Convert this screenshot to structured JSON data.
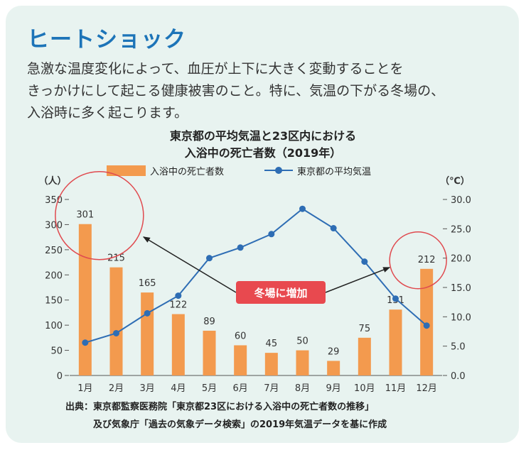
{
  "header": {
    "title": "ヒートショック"
  },
  "description": {
    "lines": [
      "急激な温度変化によって、血圧が上下に大きく変動することを",
      "きっかけにして起こる健康被害のこと。特に、気温の下がる冬場の、",
      "入浴時に多く起こります。"
    ]
  },
  "chart_data": {
    "type": "bar",
    "title_lines": [
      "東京都の平均気温と23区内における",
      "入浴中の死亡者数（2019年）"
    ],
    "categories": [
      "1月",
      "2月",
      "3月",
      "4月",
      "5月",
      "6月",
      "7月",
      "8月",
      "9月",
      "10月",
      "11月",
      "12月"
    ],
    "series": [
      {
        "name": "入浴中の死亡者数",
        "type": "bar",
        "axis": "left",
        "color": "#f39a4e",
        "values": [
          301,
          215,
          165,
          122,
          89,
          60,
          45,
          50,
          29,
          75,
          131,
          212
        ]
      },
      {
        "name": "東京都の平均気温",
        "type": "line",
        "axis": "right",
        "color": "#2e6db4",
        "values": [
          5.6,
          7.2,
          10.6,
          13.6,
          20.0,
          21.8,
          24.1,
          28.4,
          25.1,
          19.4,
          13.1,
          8.5
        ]
      }
    ],
    "left_axis": {
      "unit": "（人）",
      "ylim": [
        0,
        350
      ],
      "ticks": [
        "0",
        "50",
        "100",
        "150",
        "200",
        "250",
        "300",
        "350"
      ]
    },
    "right_axis": {
      "unit": "（℃）",
      "ylim": [
        0,
        30
      ],
      "ticks": [
        "0.0",
        "5.0",
        "10.0",
        "15.0",
        "20.0",
        "25.0",
        "30.0"
      ]
    },
    "legend_position": "top",
    "grid": false,
    "annotation": {
      "label": "冬場に増加",
      "color": "#e8494f",
      "highlight_circle_color": "#e04a4f"
    }
  },
  "source": {
    "lines": [
      "出典：東京都監察医務院「東京都23区における入浴中の死亡者数の推移」",
      "　　　及び気象庁「過去の気象データ検索」の2019年気温データを基に作成"
    ]
  }
}
